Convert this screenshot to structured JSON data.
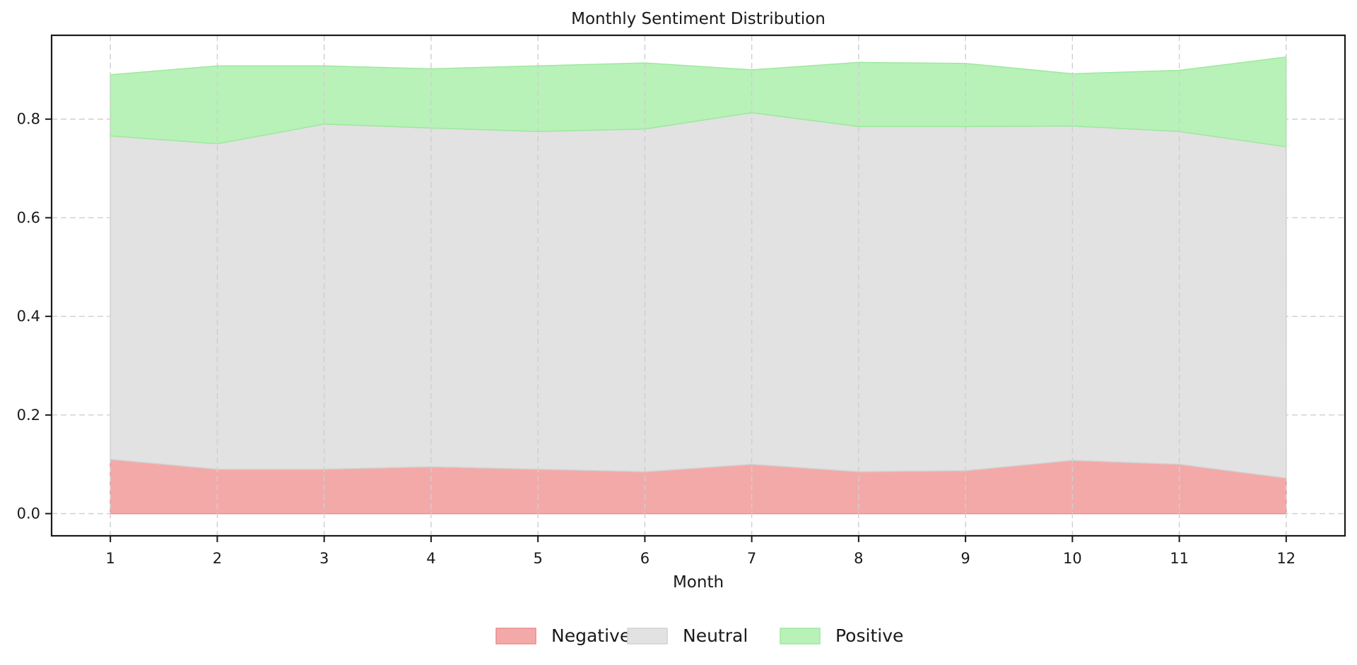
{
  "chart_data": {
    "type": "area",
    "stacked": true,
    "title": "Monthly Sentiment Distribution",
    "xlabel": "Month",
    "ylabel": "",
    "x": [
      1,
      2,
      3,
      4,
      5,
      6,
      7,
      8,
      9,
      10,
      11,
      12
    ],
    "xlim": [
      0.45,
      12.55
    ],
    "ylim": [
      -0.045,
      0.97
    ],
    "yticks": [
      0.0,
      0.2,
      0.4,
      0.6,
      0.8
    ],
    "ytick_labels": [
      "0.0",
      "0.2",
      "0.4",
      "0.6",
      "0.8"
    ],
    "grid": true,
    "legend_position": "bottom-center",
    "series": [
      {
        "name": "Negative",
        "color": "#f4a9a9",
        "edge_color": "#e98e8e",
        "values": [
          0.11,
          0.09,
          0.09,
          0.095,
          0.09,
          0.085,
          0.1,
          0.085,
          0.087,
          0.108,
          0.1,
          0.072
        ]
      },
      {
        "name": "Neutral",
        "color": "#e2e2e2",
        "edge_color": "#d2d2d2",
        "values": [
          0.656,
          0.66,
          0.7,
          0.687,
          0.685,
          0.695,
          0.713,
          0.7,
          0.698,
          0.678,
          0.675,
          0.672
        ]
      },
      {
        "name": "Positive",
        "color": "#b8f2b8",
        "edge_color": "#9ee89e",
        "values": [
          0.124,
          0.158,
          0.118,
          0.12,
          0.133,
          0.134,
          0.087,
          0.13,
          0.128,
          0.106,
          0.124,
          0.182
        ]
      }
    ]
  }
}
